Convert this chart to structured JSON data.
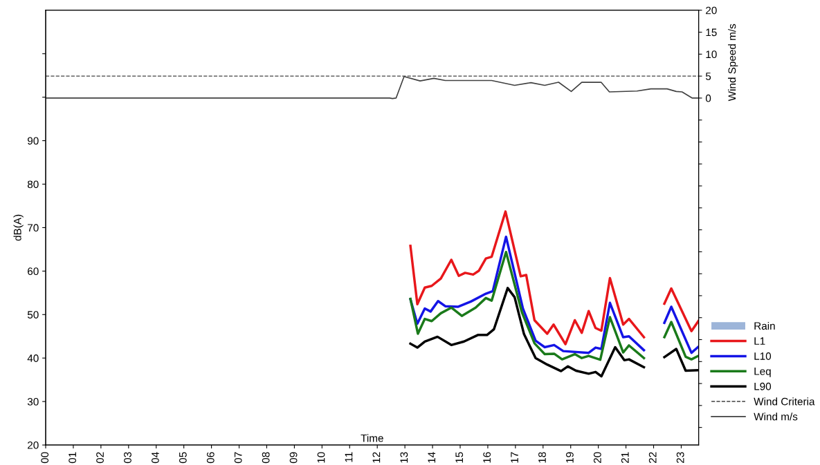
{
  "chart_data": {
    "type": "line",
    "xlabel": "Time",
    "ylabel": "dB(A)",
    "y2label": "Wind Speed m/s",
    "xlim": [
      0,
      23.63
    ],
    "xticks": [
      {
        "value": 0,
        "label": "00"
      },
      {
        "value": 1,
        "label": "01"
      },
      {
        "value": 2,
        "label": "02"
      },
      {
        "value": 3,
        "label": "03"
      },
      {
        "value": 4,
        "label": "04"
      },
      {
        "value": 5,
        "label": "05"
      },
      {
        "value": 6,
        "label": "06"
      },
      {
        "value": 7,
        "label": "07"
      },
      {
        "value": 8,
        "label": "08"
      },
      {
        "value": 9,
        "label": "09"
      },
      {
        "value": 10,
        "label": "10"
      },
      {
        "value": 11,
        "label": "11"
      },
      {
        "value": 12,
        "label": "12"
      },
      {
        "value": 13,
        "label": "13"
      },
      {
        "value": 14,
        "label": "14"
      },
      {
        "value": 15,
        "label": "15"
      },
      {
        "value": 16,
        "label": "16"
      },
      {
        "value": 17,
        "label": "17"
      },
      {
        "value": 18,
        "label": "18"
      },
      {
        "value": 19,
        "label": "19"
      },
      {
        "value": 20,
        "label": "20"
      },
      {
        "value": 21,
        "label": "21"
      },
      {
        "value": 22,
        "label": "22"
      },
      {
        "value": 23,
        "label": "23"
      }
    ],
    "ylim": [
      20,
      120
    ],
    "yticks": [
      20,
      30,
      40,
      50,
      60,
      70,
      80,
      90,
      {
        "value": 100,
        "label": null
      },
      {
        "value": 110,
        "label": null
      }
    ],
    "y2lim": [
      -79,
      20
    ],
    "y2ticks": [
      {
        "value": -75,
        "label": null
      },
      {
        "value": -70,
        "label": null
      },
      {
        "value": -65,
        "label": null
      },
      {
        "value": -60,
        "label": null
      },
      {
        "value": -55,
        "label": null
      },
      {
        "value": -50,
        "label": null
      },
      {
        "value": -45,
        "label": null
      },
      {
        "value": -40,
        "label": null
      },
      {
        "value": -35,
        "label": null
      },
      {
        "value": -30,
        "label": null
      },
      {
        "value": -25,
        "label": null
      },
      {
        "value": -20,
        "label": null
      },
      {
        "value": -15,
        "label": null
      },
      {
        "value": -10,
        "label": null
      },
      {
        "value": -5,
        "label": null
      },
      0,
      5,
      10,
      15,
      20
    ],
    "grid": false,
    "legend": "bottom right",
    "marker": "none",
    "ref_lines": [
      {
        "axis": "y2",
        "value": 5,
        "label": "Wind Criteria",
        "color": "#404040",
        "line_style": "dashed"
      }
    ],
    "series": [
      {
        "name": "Rain",
        "type": "bar",
        "axis": "y2",
        "color": "#9db5d9"
      },
      {
        "name": "L1",
        "color": "#e8171b",
        "x": [
          13.2,
          13.45,
          13.72,
          13.97,
          14.3,
          14.68,
          14.95,
          15.18,
          15.47,
          15.68,
          15.93,
          16.14,
          16.64,
          17.19,
          17.39,
          17.69,
          18.15,
          18.38,
          18.81,
          19.15,
          19.4,
          19.65,
          19.9,
          20.11,
          20.42,
          20.9,
          21.11,
          21.65,
          22.0,
          22.39,
          22.64,
          23.37,
          23.62
        ],
        "values": [
          65.8,
          52.4,
          56.2,
          56.6,
          58.3,
          62.6,
          58.9,
          59.6,
          59.2,
          60.1,
          62.9,
          63.3,
          73.7,
          58.8,
          59.1,
          48.7,
          45.6,
          47.7,
          43.2,
          48.7,
          45.8,
          50.8,
          46.9,
          46.3,
          58.4,
          47.7,
          49.0,
          44.8,
          null,
          52.5,
          56.0,
          46.2,
          48.5
        ]
      },
      {
        "name": "L10",
        "color": "#1414e6",
        "x": [
          13.2,
          13.45,
          13.72,
          13.93,
          14.2,
          14.47,
          14.93,
          15.39,
          15.93,
          16.18,
          16.66,
          17.27,
          17.73,
          18.06,
          18.4,
          18.73,
          19.65,
          19.9,
          20.11,
          20.42,
          20.9,
          21.11,
          21.65,
          22.0,
          22.39,
          22.64,
          23.37,
          23.62
        ],
        "values": [
          53.5,
          47.9,
          51.4,
          50.7,
          53.1,
          51.9,
          51.8,
          53.0,
          54.8,
          55.4,
          67.9,
          51.4,
          44.0,
          42.5,
          43.0,
          41.6,
          41.2,
          42.4,
          42.1,
          52.7,
          44.8,
          45.0,
          41.8,
          null,
          48.1,
          51.8,
          41.2,
          42.6
        ]
      },
      {
        "name": "Leq",
        "color": "#1a7a1a",
        "x": [
          13.2,
          13.47,
          13.72,
          13.97,
          14.3,
          14.68,
          15.06,
          15.56,
          15.93,
          16.14,
          16.66,
          17.23,
          17.69,
          18.06,
          18.4,
          18.69,
          19.15,
          19.4,
          19.65,
          20.07,
          20.42,
          20.9,
          21.11,
          21.65,
          22.0,
          22.39,
          22.64,
          23.16,
          23.37,
          23.62
        ],
        "values": [
          53.6,
          45.6,
          49.0,
          48.5,
          50.3,
          51.6,
          49.7,
          51.6,
          53.8,
          53.2,
          64.4,
          50.6,
          43.4,
          40.9,
          41.0,
          39.7,
          40.9,
          40.0,
          40.5,
          39.6,
          49.4,
          41.3,
          42.9,
          40.0,
          null,
          44.8,
          48.3,
          40.3,
          39.7,
          40.5
        ]
      },
      {
        "name": "L90",
        "color": "#000000",
        "x": [
          13.2,
          13.45,
          13.72,
          14.18,
          14.68,
          15.14,
          15.64,
          15.97,
          16.22,
          16.72,
          16.97,
          17.31,
          17.73,
          18.15,
          18.65,
          18.9,
          19.19,
          19.65,
          19.9,
          20.11,
          20.61,
          20.94,
          21.11,
          21.65,
          22.0,
          22.39,
          22.82,
          23.16,
          23.62
        ],
        "values": [
          43.3,
          42.4,
          43.8,
          44.9,
          43.0,
          43.8,
          45.3,
          45.3,
          46.6,
          56.1,
          54.0,
          45.5,
          40.0,
          38.5,
          37.0,
          38.1,
          37.1,
          36.4,
          36.8,
          35.8,
          42.5,
          39.5,
          39.7,
          37.9,
          null,
          40.2,
          42.1,
          37.1,
          37.2
        ]
      },
      {
        "name": "Wind m/s",
        "axis": "y2",
        "color": "#404040",
        "x": [
          0,
          12.45,
          12.55,
          12.68,
          12.97,
          13.55,
          14.05,
          14.46,
          16.14,
          16.97,
          17.56,
          18.06,
          18.56,
          19.02,
          19.4,
          20.1,
          20.4,
          21.4,
          21.9,
          22.49,
          22.82,
          23.03,
          23.4,
          23.63
        ],
        "values": [
          0,
          0,
          -0.1,
          0,
          4.9,
          3.9,
          4.5,
          4.0,
          4.0,
          2.9,
          3.5,
          2.9,
          3.6,
          1.5,
          3.6,
          3.6,
          1.4,
          1.6,
          2.1,
          2.1,
          1.5,
          1.4,
          0,
          0
        ]
      }
    ]
  }
}
